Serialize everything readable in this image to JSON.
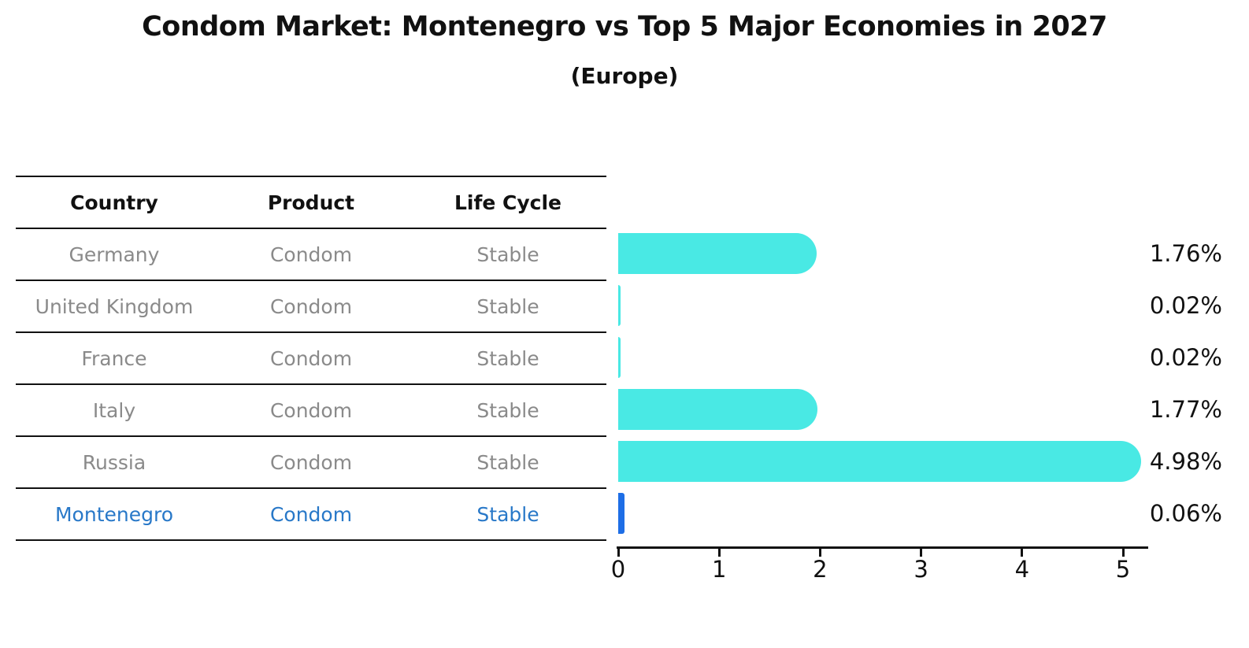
{
  "title": "Condom Market: Montenegro vs Top 5 Major Economies in 2027",
  "subtitle": "(Europe)",
  "table": {
    "headers": [
      "Country",
      "Product",
      "Life Cycle"
    ],
    "rows": [
      {
        "country": "Germany",
        "product": "Condom",
        "life_cycle": "Stable",
        "highlight": false
      },
      {
        "country": "United Kingdom",
        "product": "Condom",
        "life_cycle": "Stable",
        "highlight": false
      },
      {
        "country": "France",
        "product": "Condom",
        "life_cycle": "Stable",
        "highlight": false
      },
      {
        "country": "Italy",
        "product": "Condom",
        "life_cycle": "Stable",
        "highlight": false
      },
      {
        "country": "Russia",
        "product": "Condom",
        "life_cycle": "Stable",
        "highlight": false
      },
      {
        "country": "Montenegro",
        "product": "Condom",
        "life_cycle": "Stable",
        "highlight": true
      }
    ]
  },
  "chart_data": {
    "type": "bar",
    "orientation": "horizontal",
    "title": "Condom Market: Montenegro vs Top 5 Major Economies in 2027",
    "subtitle": "(Europe)",
    "categories": [
      "Germany",
      "United Kingdom",
      "France",
      "Italy",
      "Russia",
      "Montenegro"
    ],
    "values": [
      1.76,
      0.02,
      0.02,
      1.77,
      4.98,
      0.06
    ],
    "value_labels": [
      "1.76%",
      "0.02%",
      "0.02%",
      "1.77%",
      "4.98%",
      "0.06%"
    ],
    "x_ticks": [
      "0",
      "1",
      "2",
      "3",
      "4",
      "5"
    ],
    "xlim": [
      0,
      5.26
    ],
    "grid": false,
    "legend": "none",
    "bar_color": "#49e9e4",
    "highlight_bar_color": "#1e6ee6",
    "highlight_index": 5
  },
  "colors": {
    "row_text": "#8a8a8a",
    "highlight_text": "#2878c8",
    "axis": "#111111",
    "background": "#ffffff"
  }
}
